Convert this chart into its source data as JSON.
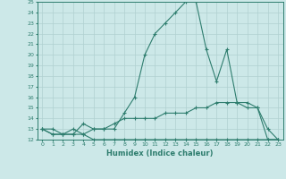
{
  "xlabel": "Humidex (Indice chaleur)",
  "ylabel": "",
  "x": [
    0,
    1,
    2,
    3,
    4,
    5,
    6,
    7,
    8,
    9,
    10,
    11,
    12,
    13,
    14,
    15,
    16,
    17,
    18,
    19,
    20,
    21,
    22,
    23
  ],
  "line1": [
    13,
    13,
    12.5,
    13,
    12.5,
    13,
    13,
    13,
    14.5,
    16,
    20,
    22,
    23,
    24,
    25,
    25,
    20.5,
    17.5,
    20.5,
    15.5,
    15.5,
    15,
    13,
    12
  ],
  "line2": [
    13,
    12.5,
    12.5,
    12.5,
    13.5,
    13,
    13,
    13.5,
    14,
    14,
    14,
    14,
    14.5,
    14.5,
    14.5,
    15,
    15,
    15.5,
    15.5,
    15.5,
    15,
    15,
    12,
    12
  ],
  "line3": [
    13,
    12.5,
    12.5,
    12.5,
    12.5,
    12,
    12,
    12,
    12,
    12,
    12,
    12,
    12,
    12,
    12,
    12,
    12,
    12,
    12,
    12,
    12,
    12,
    12,
    12
  ],
  "ylim": [
    12,
    25
  ],
  "xlim": [
    -0.5,
    23.5
  ],
  "yticks": [
    12,
    13,
    14,
    15,
    16,
    17,
    18,
    19,
    20,
    21,
    22,
    23,
    24,
    25
  ],
  "xticks": [
    0,
    1,
    2,
    3,
    4,
    5,
    6,
    7,
    8,
    9,
    10,
    11,
    12,
    13,
    14,
    15,
    16,
    17,
    18,
    19,
    20,
    21,
    22,
    23
  ],
  "bg_color": "#cce8e8",
  "line_color": "#2e7d6e",
  "grid_color": "#b8d8d8",
  "marker": "+"
}
